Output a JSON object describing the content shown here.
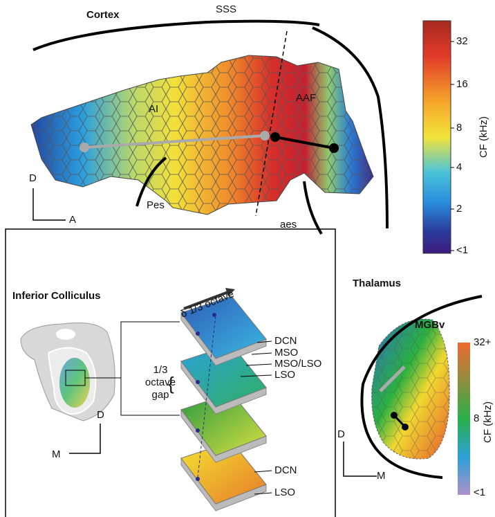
{
  "cortex": {
    "title": "Cortex",
    "labels": {
      "sss": "SSS",
      "ai": "AI",
      "aaf": "AAF",
      "pes": "Pes",
      "aes": "aes"
    },
    "axes": {
      "d": "D",
      "a": "A"
    }
  },
  "colorbar": {
    "title": "CF (kHz)",
    "ticks": [
      "32",
      "16",
      "8",
      "4",
      "2",
      "<1"
    ]
  },
  "colliculus": {
    "title": "Inferior Colliculus",
    "top_label": "δ 1/3 octave",
    "layer_labels": [
      "DCN",
      "MSO",
      "MSO/LSO",
      "LSO"
    ],
    "gap_label": [
      "1/3",
      "octave",
      "gap"
    ],
    "bottom_labels": [
      "DCN",
      "LSO"
    ],
    "axes": {
      "d": "D",
      "m": "M"
    }
  },
  "thalamus": {
    "title": "Thalamus",
    "region": "MGBv",
    "colorbar": {
      "title": "CF (kHz)",
      "ticks": [
        "32+",
        "8",
        "<1"
      ]
    },
    "axes": {
      "d": "D",
      "m": "M"
    }
  }
}
